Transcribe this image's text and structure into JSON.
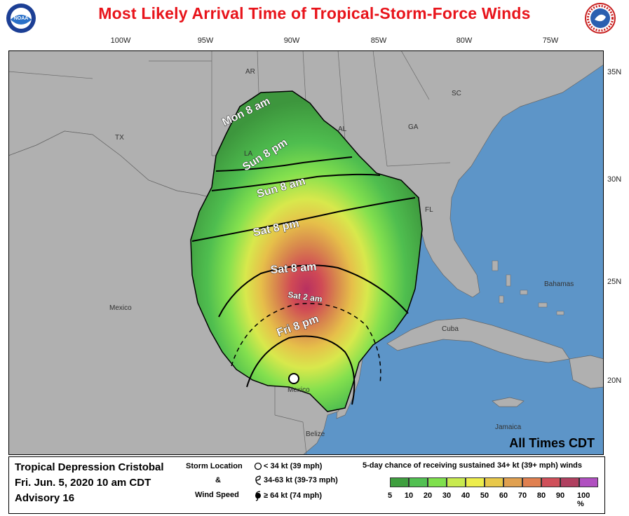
{
  "title": "Most Likely Arrival Time of Tropical-Storm-Force Winds",
  "logos": {
    "left": "NOAA",
    "right": "NATIONAL WEATHER SERVICE"
  },
  "longitudes": [
    "100W",
    "95W",
    "90W",
    "85W",
    "80W",
    "75W"
  ],
  "latitudes": [
    "35N",
    "30N",
    "25N",
    "20N"
  ],
  "map_labels": {
    "states": [
      "AR",
      "TX",
      "LA",
      "AL",
      "GA",
      "SC",
      "FL"
    ],
    "countries": [
      "Mexico",
      "Cuba",
      "Bahamas",
      "Jamaica",
      "Belize",
      "Mexico"
    ]
  },
  "contours": {
    "mon_8am": "Mon 8 am",
    "sun_8pm": "Sun 8 pm",
    "sun_8am": "Sun 8 am",
    "sat_8pm": "Sat 8 pm",
    "sat_8am": "Sat 8 am",
    "sat_2am": "Sat 2 am",
    "fri_8pm": "Fri 8 pm"
  },
  "times_note": "All Times CDT",
  "legend": {
    "storm_name": "Tropical Depression Cristobal",
    "datetime": "Fri. Jun. 5, 2020  10 am CDT",
    "advisory": "Advisory 16",
    "storm_location": "Storm Location",
    "amp": "&",
    "wind_speed": "Wind Speed",
    "markers": [
      "< 34 kt (39 mph)",
      "34-63 kt (39-73 mph)",
      "≥ 64 kt (74 mph)"
    ],
    "scale_title": "5-day chance of receiving sustained 34+ kt (39+ mph) winds",
    "scale_ticks": [
      "5",
      "10",
      "20",
      "30",
      "40",
      "50",
      "60",
      "70",
      "80",
      "90",
      "100 %"
    ],
    "scale_colors": [
      "#3f9f3f",
      "#52c052",
      "#7fe04d",
      "#c8ea4f",
      "#eded4c",
      "#e8c84a",
      "#e0a050",
      "#e08050",
      "#d0505a",
      "#b04060",
      "#b050c0"
    ]
  },
  "colors": {
    "title": "#e8141b",
    "land": "#b0b0b0",
    "water": "#5d95c8"
  }
}
